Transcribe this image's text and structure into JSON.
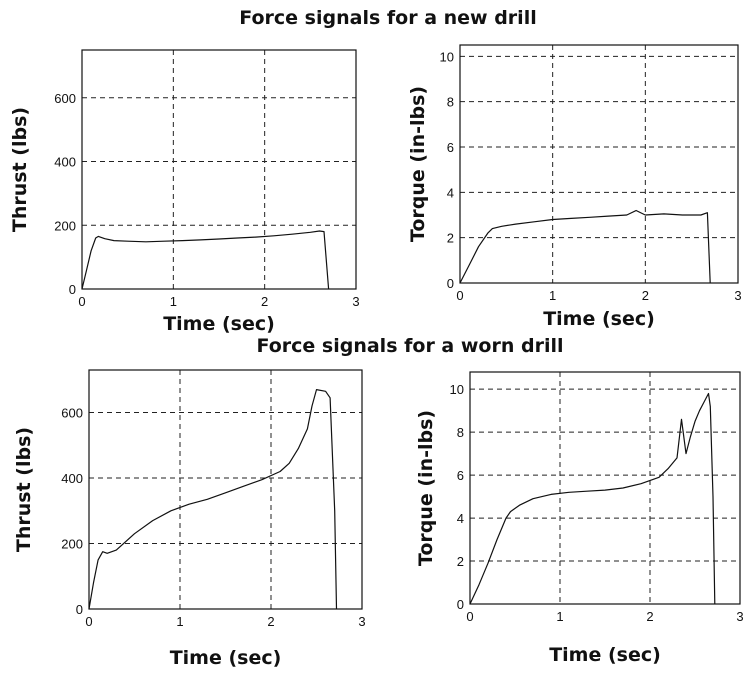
{
  "sections": [
    {
      "title": "Force signals for a new drill"
    },
    {
      "title": "Force signals for a worn drill"
    }
  ],
  "chart_data": [
    {
      "type": "line",
      "section": 0,
      "xlabel": "Time (sec)",
      "ylabel": "Thrust (lbs)",
      "xlim": [
        0,
        3
      ],
      "ylim": [
        0,
        750
      ],
      "xticks": [
        0,
        1,
        2,
        3
      ],
      "yticks": [
        0,
        200,
        400,
        600
      ],
      "grid": true,
      "series": [
        {
          "x": [
            0,
            0.05,
            0.1,
            0.15,
            0.18,
            0.25,
            0.35,
            0.5,
            0.7,
            0.9,
            1.1,
            1.3,
            1.5,
            1.7,
            1.9,
            2.1,
            2.3,
            2.5,
            2.6,
            2.65,
            2.7
          ],
          "y": [
            0,
            60,
            120,
            160,
            165,
            158,
            152,
            150,
            148,
            150,
            152,
            154,
            157,
            160,
            163,
            167,
            172,
            178,
            182,
            180,
            0
          ]
        }
      ]
    },
    {
      "type": "line",
      "section": 0,
      "xlabel": "Time (sec)",
      "ylabel": "Torque (in-lbs)",
      "xlim": [
        0,
        3
      ],
      "ylim": [
        0,
        10.5
      ],
      "xticks": [
        0,
        1,
        2,
        3
      ],
      "yticks": [
        0,
        2,
        4,
        6,
        8,
        10
      ],
      "grid": true,
      "series": [
        {
          "x": [
            0,
            0.1,
            0.2,
            0.3,
            0.35,
            0.45,
            0.6,
            0.8,
            1.0,
            1.2,
            1.4,
            1.6,
            1.8,
            1.9,
            2.0,
            2.2,
            2.4,
            2.6,
            2.67,
            2.7
          ],
          "y": [
            0,
            0.8,
            1.6,
            2.2,
            2.4,
            2.5,
            2.6,
            2.7,
            2.8,
            2.85,
            2.9,
            2.95,
            3.0,
            3.2,
            3.0,
            3.05,
            3.0,
            3.0,
            3.1,
            0
          ]
        }
      ]
    },
    {
      "type": "line",
      "section": 1,
      "xlabel": "Time (sec)",
      "ylabel": "Thrust (lbs)",
      "xlim": [
        0,
        3
      ],
      "ylim": [
        0,
        730
      ],
      "xticks": [
        0,
        1,
        2,
        3
      ],
      "yticks": [
        0,
        200,
        400,
        600
      ],
      "grid": true,
      "series": [
        {
          "x": [
            0,
            0.05,
            0.1,
            0.15,
            0.2,
            0.3,
            0.5,
            0.7,
            0.9,
            1.1,
            1.3,
            1.5,
            1.7,
            1.9,
            2.1,
            2.2,
            2.3,
            2.4,
            2.45,
            2.5,
            2.6,
            2.65,
            2.7,
            2.72
          ],
          "y": [
            0,
            80,
            150,
            175,
            170,
            180,
            230,
            270,
            300,
            320,
            335,
            355,
            375,
            395,
            420,
            445,
            490,
            550,
            620,
            670,
            665,
            645,
            300,
            0
          ]
        }
      ]
    },
    {
      "type": "line",
      "section": 1,
      "xlabel": "Time (sec)",
      "ylabel": "Torque (in-lbs)",
      "xlim": [
        0,
        3
      ],
      "ylim": [
        0,
        10.8
      ],
      "xticks": [
        0,
        1,
        2,
        3
      ],
      "yticks": [
        0,
        2,
        4,
        6,
        8,
        10
      ],
      "grid": true,
      "series": [
        {
          "x": [
            0,
            0.1,
            0.2,
            0.3,
            0.4,
            0.45,
            0.55,
            0.7,
            0.9,
            1.1,
            1.3,
            1.5,
            1.7,
            1.9,
            2.1,
            2.2,
            2.3,
            2.35,
            2.4,
            2.45,
            2.5,
            2.55,
            2.6,
            2.65,
            2.67,
            2.7,
            2.72
          ],
          "y": [
            0,
            0.9,
            1.9,
            3.0,
            4.0,
            4.3,
            4.6,
            4.9,
            5.1,
            5.2,
            5.25,
            5.3,
            5.4,
            5.6,
            5.9,
            6.3,
            6.8,
            8.6,
            7.0,
            7.8,
            8.5,
            9.0,
            9.4,
            9.8,
            9.2,
            5.0,
            0
          ]
        }
      ]
    }
  ]
}
